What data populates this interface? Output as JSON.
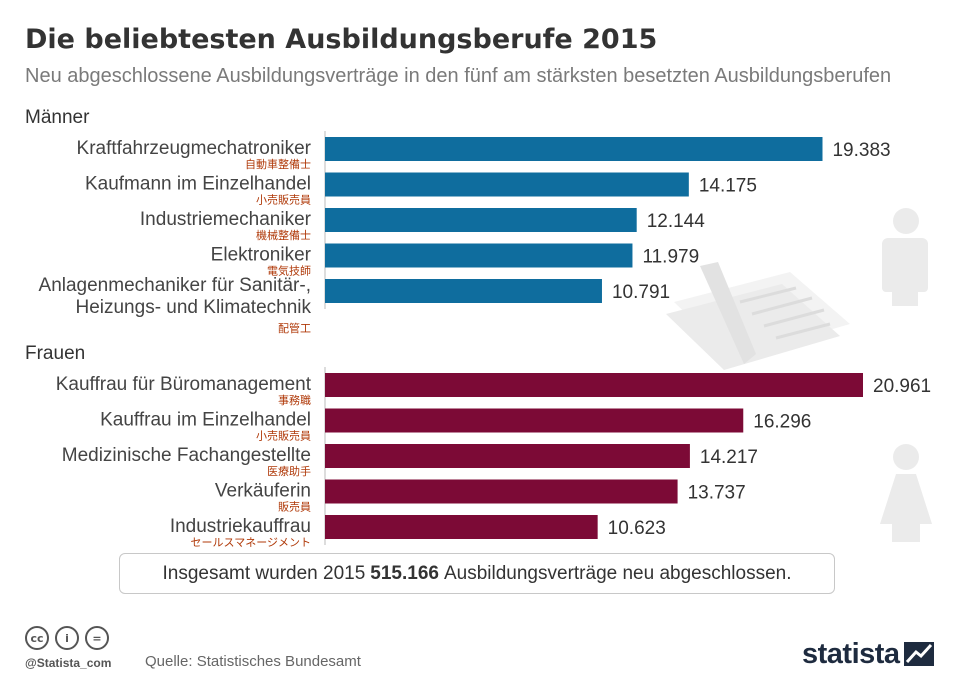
{
  "title": "Die beliebtesten Ausbildungsberufe 2015",
  "subtitle": "Neu abgeschlossene Ausbildungsverträge in den fünf am stärksten besetzten Ausbildungsberufen",
  "summary": {
    "before": "Insgesamt wurden 2015",
    "highlight": "515.166",
    "after": "Ausbildungsverträge neu abgeschlossen."
  },
  "footer": {
    "handle": "@Statista_com",
    "source": "Quelle: Statistisches Bundesamt",
    "brand": "statista",
    "cc_icons": [
      "cc-icon",
      "by-icon",
      "nd-icon"
    ]
  },
  "decor": {
    "icons": [
      "male-figure-icon",
      "contract-paper-icon",
      "female-figure-icon"
    ]
  },
  "colors": {
    "men": "#0f6d9e",
    "women": "#7c0a36",
    "annotation": "#b03a0a"
  },
  "chart_data": [
    {
      "type": "bar",
      "orientation": "horizontal",
      "title": "Männer",
      "categories": [
        "Kraftfahrzeugmechatroniker",
        "Kaufmann im Einzelhandel",
        "Industriemechaniker",
        "Elektroniker",
        "Anlagenmechaniker für Sanitär-,\nHeizungs- und Klimatechnik"
      ],
      "annotations": [
        "自動車整備士",
        "小売販売員",
        "機械整備士",
        "電気技師",
        "配管工"
      ],
      "values": [
        19383,
        14175,
        12144,
        11979,
        10791
      ],
      "value_labels": [
        "19.383",
        "14.175",
        "12.144",
        "11.979",
        "10.791"
      ]
    },
    {
      "type": "bar",
      "orientation": "horizontal",
      "title": "Frauen",
      "categories": [
        "Kauffrau für Büromanagement",
        "Kauffrau im Einzelhandel",
        "Medizinische Fachangestellte",
        "Verkäuferin",
        "Industriekauffrau"
      ],
      "annotations": [
        "事務職",
        "小売販売員",
        "医療助手",
        "販売員",
        "セールスマネージメント"
      ],
      "values": [
        20961,
        16296,
        14217,
        13737,
        10623
      ],
      "value_labels": [
        "20.961",
        "16.296",
        "14.217",
        "13.737",
        "10.623"
      ]
    }
  ]
}
